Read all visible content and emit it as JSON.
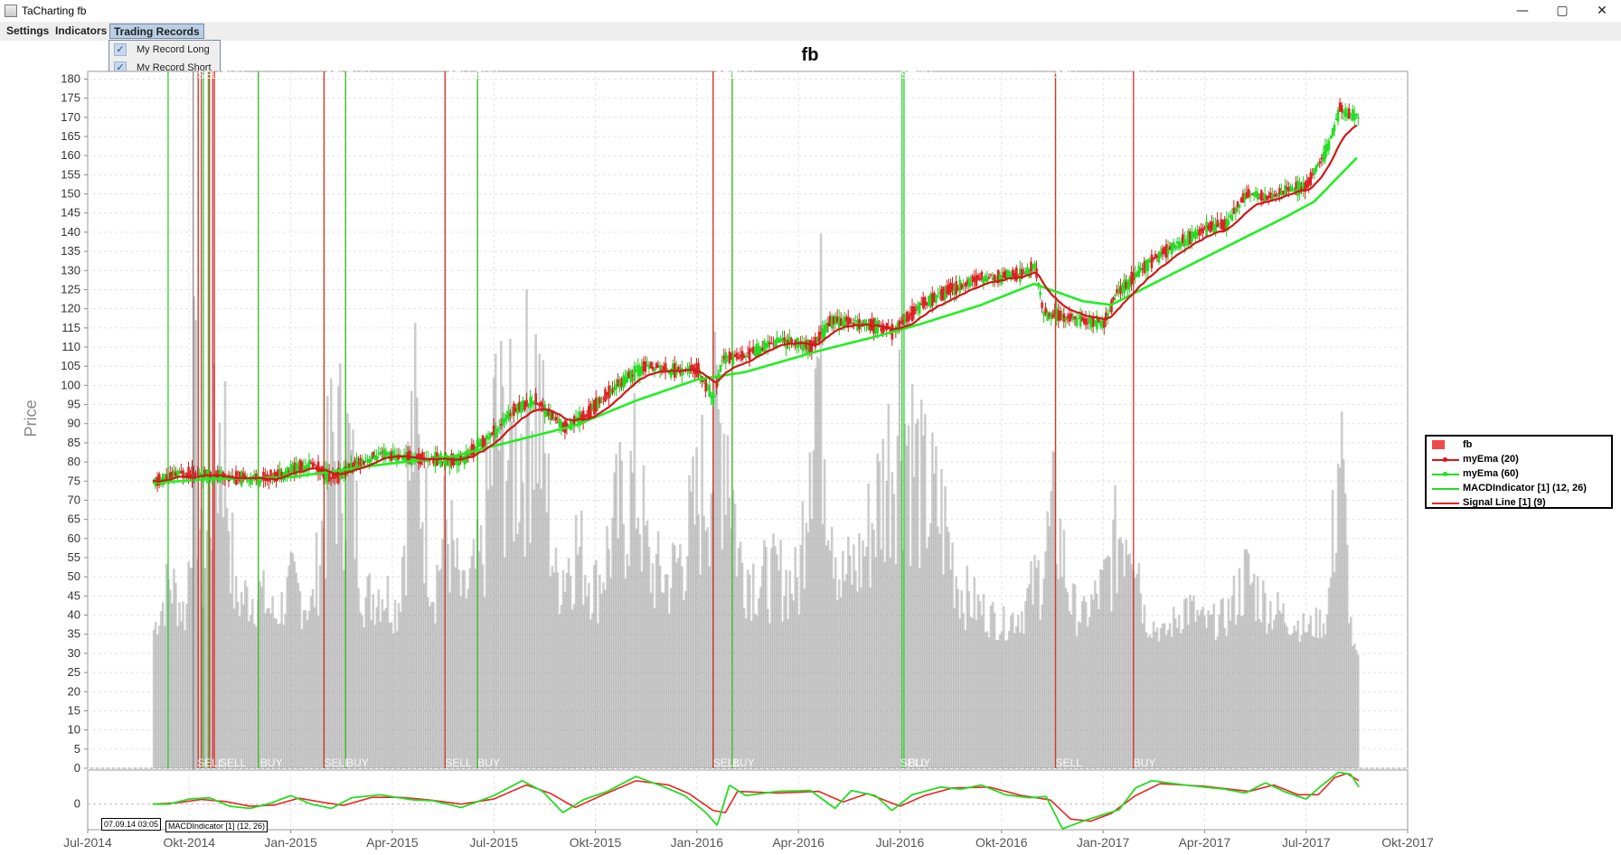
{
  "window": {
    "title": "TaCharting fb",
    "controls": [
      "—",
      "▢",
      "✕"
    ]
  },
  "menu": {
    "items": [
      "Settings",
      "Indicators",
      "Trading Records"
    ],
    "active_index": 2
  },
  "dropdown": {
    "items": [
      {
        "label": "My Record Long",
        "checked": true
      },
      {
        "label": "My Record Short",
        "checked": true
      }
    ]
  },
  "tooltip": {
    "text": "07.09.14 03:05",
    "overlap_text": "MACDIndicator [1] (12, 26)"
  },
  "legend": [
    {
      "label": "fb",
      "color": "#ee4b4b",
      "style": "box"
    },
    {
      "label": "myEma (20)",
      "color": "#e01010",
      "style": "line-dot"
    },
    {
      "label": "myEma (60)",
      "color": "#1ee01e",
      "style": "line-dot"
    },
    {
      "label": "MACDIndicator [1] (12, 26)",
      "color": "#22dd22",
      "style": "line"
    },
    {
      "label": "Signal Line [1] (9)",
      "color": "#ee2222",
      "style": "line"
    }
  ],
  "chart_data": {
    "type": "candlestick",
    "title": "fb",
    "ylabel": "Price",
    "ylim": [
      0,
      182
    ],
    "y_ticks": [
      0,
      5,
      10,
      15,
      20,
      25,
      30,
      35,
      40,
      45,
      50,
      55,
      60,
      65,
      70,
      75,
      80,
      85,
      90,
      95,
      100,
      105,
      110,
      115,
      120,
      125,
      130,
      135,
      140,
      145,
      150,
      155,
      160,
      165,
      170,
      175,
      180
    ],
    "xlim": [
      2014.5,
      2017.75
    ],
    "x_ticks": [
      {
        "label": "Jul-2014",
        "x": 2014.5
      },
      {
        "label": "Okt-2014",
        "x": 2014.75
      },
      {
        "label": "Jan-2015",
        "x": 2015.0
      },
      {
        "label": "Apr-2015",
        "x": 2015.25
      },
      {
        "label": "Jul-2015",
        "x": 2015.5
      },
      {
        "label": "Okt-2015",
        "x": 2015.75
      },
      {
        "label": "Jan-2016",
        "x": 2016.0
      },
      {
        "label": "Apr-2016",
        "x": 2016.25
      },
      {
        "label": "Jul-2016",
        "x": 2016.5
      },
      {
        "label": "Okt-2016",
        "x": 2016.75
      },
      {
        "label": "Jan-2017",
        "x": 2017.0
      },
      {
        "label": "Apr-2017",
        "x": 2017.25
      },
      {
        "label": "Jul-2017",
        "x": 2017.5
      },
      {
        "label": "Okt-2017",
        "x": 2017.75
      }
    ],
    "data_range": [
      2014.66,
      2017.63
    ],
    "grid": true,
    "legend_position": "right",
    "price_path": [
      [
        2014.66,
        74.5
      ],
      [
        2014.72,
        77
      ],
      [
        2014.8,
        76.5
      ],
      [
        2014.88,
        75.5
      ],
      [
        2014.95,
        76
      ],
      [
        2015.0,
        78
      ],
      [
        2015.05,
        79.5
      ],
      [
        2015.1,
        75.5
      ],
      [
        2015.15,
        79
      ],
      [
        2015.22,
        82
      ],
      [
        2015.3,
        81
      ],
      [
        2015.37,
        80.5
      ],
      [
        2015.42,
        80.5
      ],
      [
        2015.5,
        88
      ],
      [
        2015.55,
        94
      ],
      [
        2015.6,
        96
      ],
      [
        2015.67,
        89
      ],
      [
        2015.72,
        92
      ],
      [
        2015.8,
        100
      ],
      [
        2015.87,
        105
      ],
      [
        2015.93,
        104
      ],
      [
        2016.0,
        104
      ],
      [
        2016.04,
        96
      ],
      [
        2016.06,
        107
      ],
      [
        2016.12,
        108
      ],
      [
        2016.2,
        112
      ],
      [
        2016.28,
        110
      ],
      [
        2016.33,
        117
      ],
      [
        2016.42,
        116
      ],
      [
        2016.48,
        114
      ],
      [
        2016.55,
        121
      ],
      [
        2016.62,
        125
      ],
      [
        2016.7,
        128
      ],
      [
        2016.8,
        129
      ],
      [
        2016.83,
        131
      ],
      [
        2016.85,
        119
      ],
      [
        2016.9,
        118
      ],
      [
        2016.95,
        117
      ],
      [
        2017.0,
        116
      ],
      [
        2017.03,
        124
      ],
      [
        2017.1,
        131
      ],
      [
        2017.15,
        135
      ],
      [
        2017.25,
        141
      ],
      [
        2017.3,
        142
      ],
      [
        2017.35,
        150
      ],
      [
        2017.4,
        149
      ],
      [
        2017.45,
        151
      ],
      [
        2017.5,
        152
      ],
      [
        2017.55,
        162
      ],
      [
        2017.58,
        172
      ],
      [
        2017.6,
        171
      ],
      [
        2017.63,
        170
      ]
    ],
    "ema60_path": [
      [
        2014.66,
        74.5
      ],
      [
        2014.8,
        75.5
      ],
      [
        2015.0,
        76
      ],
      [
        2015.2,
        79
      ],
      [
        2015.4,
        81.5
      ],
      [
        2015.55,
        85.5
      ],
      [
        2015.7,
        89.5
      ],
      [
        2015.85,
        96
      ],
      [
        2016.0,
        101.5
      ],
      [
        2016.12,
        103.5
      ],
      [
        2016.3,
        109
      ],
      [
        2016.45,
        113
      ],
      [
        2016.55,
        116
      ],
      [
        2016.7,
        121
      ],
      [
        2016.83,
        126.5
      ],
      [
        2016.95,
        122
      ],
      [
        2017.02,
        121
      ],
      [
        2017.15,
        128
      ],
      [
        2017.3,
        136
      ],
      [
        2017.45,
        144
      ],
      [
        2017.52,
        148
      ],
      [
        2017.63,
        160
      ]
    ],
    "volume_bars": [
      {
        "x": 2014.66,
        "v": 40
      },
      {
        "x": 2014.7,
        "v": 60
      },
      {
        "x": 2014.74,
        "v": 45
      },
      {
        "x": 2014.76,
        "v": 132
      },
      {
        "x": 2014.78,
        "v": 58
      },
      {
        "x": 2014.8,
        "v": 97
      },
      {
        "x": 2014.83,
        "v": 130
      },
      {
        "x": 2014.86,
        "v": 52
      },
      {
        "x": 2014.92,
        "v": 55
      },
      {
        "x": 2014.96,
        "v": 45
      },
      {
        "x": 2015.0,
        "v": 58
      },
      {
        "x": 2015.05,
        "v": 49
      },
      {
        "x": 2015.1,
        "v": 114
      },
      {
        "x": 2015.14,
        "v": 110
      },
      {
        "x": 2015.18,
        "v": 52
      },
      {
        "x": 2015.22,
        "v": 58
      },
      {
        "x": 2015.26,
        "v": 48
      },
      {
        "x": 2015.3,
        "v": 126
      },
      {
        "x": 2015.35,
        "v": 56
      },
      {
        "x": 2015.38,
        "v": 84
      },
      {
        "x": 2015.42,
        "v": 52
      },
      {
        "x": 2015.47,
        "v": 70
      },
      {
        "x": 2015.5,
        "v": 124
      },
      {
        "x": 2015.55,
        "v": 109
      },
      {
        "x": 2015.6,
        "v": 143
      },
      {
        "x": 2015.65,
        "v": 60
      },
      {
        "x": 2015.7,
        "v": 75
      },
      {
        "x": 2015.75,
        "v": 57
      },
      {
        "x": 2015.8,
        "v": 85
      },
      {
        "x": 2015.85,
        "v": 102
      },
      {
        "x": 2015.88,
        "v": 65
      },
      {
        "x": 2015.93,
        "v": 60
      },
      {
        "x": 2015.98,
        "v": 80
      },
      {
        "x": 2016.03,
        "v": 110
      },
      {
        "x": 2016.07,
        "v": 129
      },
      {
        "x": 2016.1,
        "v": 70
      },
      {
        "x": 2016.15,
        "v": 60
      },
      {
        "x": 2016.2,
        "v": 62
      },
      {
        "x": 2016.25,
        "v": 58
      },
      {
        "x": 2016.28,
        "v": 150
      },
      {
        "x": 2016.3,
        "v": 149
      },
      {
        "x": 2016.35,
        "v": 60
      },
      {
        "x": 2016.4,
        "v": 68
      },
      {
        "x": 2016.46,
        "v": 103
      },
      {
        "x": 2016.5,
        "v": 133
      },
      {
        "x": 2016.55,
        "v": 98
      },
      {
        "x": 2016.6,
        "v": 87
      },
      {
        "x": 2016.65,
        "v": 55
      },
      {
        "x": 2016.7,
        "v": 48
      },
      {
        "x": 2016.75,
        "v": 42
      },
      {
        "x": 2016.8,
        "v": 48
      },
      {
        "x": 2016.84,
        "v": 62
      },
      {
        "x": 2016.88,
        "v": 88
      },
      {
        "x": 2016.92,
        "v": 50
      },
      {
        "x": 2016.95,
        "v": 45
      },
      {
        "x": 2017.0,
        "v": 58
      },
      {
        "x": 2017.04,
        "v": 82
      },
      {
        "x": 2017.07,
        "v": 93
      },
      {
        "x": 2017.1,
        "v": 45
      },
      {
        "x": 2017.15,
        "v": 38
      },
      {
        "x": 2017.2,
        "v": 50
      },
      {
        "x": 2017.25,
        "v": 42
      },
      {
        "x": 2017.3,
        "v": 45
      },
      {
        "x": 2017.35,
        "v": 62
      },
      {
        "x": 2017.4,
        "v": 50
      },
      {
        "x": 2017.45,
        "v": 45
      },
      {
        "x": 2017.5,
        "v": 40
      },
      {
        "x": 2017.55,
        "v": 45
      },
      {
        "x": 2017.58,
        "v": 118
      },
      {
        "x": 2017.61,
        "v": 35
      },
      {
        "x": 2017.63,
        "v": 28
      }
    ],
    "volume_fill_level": 30,
    "trade_regions": [
      {
        "type": "long",
        "x0": 2014.698,
        "x1": 2014.772
      },
      {
        "type": "short",
        "x0": 2014.772,
        "x1": 2014.78
      },
      {
        "type": "long",
        "x0": 2014.785,
        "x1": 2014.797
      },
      {
        "type": "short",
        "x0": 2014.8,
        "x1": 2014.808
      },
      {
        "type": "short",
        "x0": 2014.812,
        "x1": 2014.92
      },
      {
        "type": "long",
        "x0": 2014.92,
        "x1": 2015.082
      },
      {
        "type": "short",
        "x0": 2015.082,
        "x1": 2015.135
      },
      {
        "type": "long",
        "x0": 2015.135,
        "x1": 2015.38
      },
      {
        "type": "short",
        "x0": 2015.38,
        "x1": 2015.46
      },
      {
        "type": "long",
        "x0": 2015.46,
        "x1": 2016.04
      },
      {
        "type": "short",
        "x0": 2016.04,
        "x1": 2016.087
      },
      {
        "type": "long",
        "x0": 2016.087,
        "x1": 2016.505
      },
      {
        "type": "long",
        "x0": 2016.51,
        "x1": 2016.883
      },
      {
        "type": "short",
        "x0": 2016.883,
        "x1": 2017.075
      }
    ],
    "region_labels": [
      {
        "text": "SELL",
        "x": 2014.77
      },
      {
        "text": "BUY",
        "x": 2014.83
      },
      {
        "text": "SELL",
        "x": 2015.085
      },
      {
        "text": "BUY",
        "x": 2015.14
      },
      {
        "text": "SELL",
        "x": 2015.385
      },
      {
        "text": "BUY",
        "x": 2015.455
      },
      {
        "text": "SELL",
        "x": 2016.045
      },
      {
        "text": "BUY",
        "x": 2016.085
      },
      {
        "text": "SELL",
        "x": 2016.5
      },
      {
        "text": "BUY",
        "x": 2016.525
      },
      {
        "text": "SELL",
        "x": 2016.88
      },
      {
        "text": "BUY",
        "x": 2017.075
      }
    ],
    "bottom_labels": [
      {
        "text": "SELL",
        "x": 2014.77
      },
      {
        "text": "SELL",
        "x": 2014.825
      },
      {
        "text": "BUY",
        "x": 2014.925
      },
      {
        "text": "SELL",
        "x": 2015.082
      },
      {
        "text": "BUY",
        "x": 2015.137
      },
      {
        "text": "SELL",
        "x": 2015.38
      },
      {
        "text": "BUY",
        "x": 2015.46
      },
      {
        "text": "SELL",
        "x": 2016.04
      },
      {
        "text": "BUY",
        "x": 2016.087
      },
      {
        "text": "SELL",
        "x": 2016.5
      },
      {
        "text": "BUY",
        "x": 2016.52
      },
      {
        "text": "SELL",
        "x": 2016.883
      },
      {
        "text": "BUY",
        "x": 2017.075
      }
    ],
    "macd": {
      "y_tick_label": "0",
      "ylim": [
        -6,
        8
      ],
      "macd_path": [
        [
          2014.66,
          0
        ],
        [
          2014.7,
          0
        ],
        [
          2014.75,
          1.2
        ],
        [
          2014.8,
          1.5
        ],
        [
          2014.85,
          -0.5
        ],
        [
          2014.9,
          -1
        ],
        [
          2014.95,
          0.2
        ],
        [
          2015.0,
          2
        ],
        [
          2015.05,
          0
        ],
        [
          2015.1,
          -1
        ],
        [
          2015.15,
          1.5
        ],
        [
          2015.22,
          2.2
        ],
        [
          2015.3,
          1
        ],
        [
          2015.35,
          0.8
        ],
        [
          2015.42,
          -0.8
        ],
        [
          2015.5,
          2
        ],
        [
          2015.57,
          5.5
        ],
        [
          2015.62,
          3
        ],
        [
          2015.67,
          -2
        ],
        [
          2015.72,
          1
        ],
        [
          2015.78,
          3
        ],
        [
          2015.85,
          6.5
        ],
        [
          2015.92,
          4
        ],
        [
          2015.97,
          2
        ],
        [
          2016.02,
          -1.8
        ],
        [
          2016.05,
          -5
        ],
        [
          2016.08,
          4.5
        ],
        [
          2016.12,
          2
        ],
        [
          2016.2,
          3
        ],
        [
          2016.28,
          3.2
        ],
        [
          2016.34,
          -1
        ],
        [
          2016.38,
          3.2
        ],
        [
          2016.44,
          2
        ],
        [
          2016.48,
          -1.5
        ],
        [
          2016.53,
          2.2
        ],
        [
          2016.6,
          4
        ],
        [
          2016.65,
          3.5
        ],
        [
          2016.7,
          4.5
        ],
        [
          2016.76,
          2.2
        ],
        [
          2016.82,
          1.5
        ],
        [
          2016.86,
          1.8
        ],
        [
          2016.9,
          -5.8
        ],
        [
          2016.95,
          -4
        ],
        [
          2017.0,
          -2.5
        ],
        [
          2017.04,
          -1.3
        ],
        [
          2017.08,
          3.8
        ],
        [
          2017.12,
          5.5
        ],
        [
          2017.2,
          4.5
        ],
        [
          2017.3,
          3.5
        ],
        [
          2017.35,
          2.6
        ],
        [
          2017.4,
          5
        ],
        [
          2017.45,
          2.8
        ],
        [
          2017.5,
          1.2
        ],
        [
          2017.54,
          4.5
        ],
        [
          2017.58,
          7.5
        ],
        [
          2017.61,
          7
        ],
        [
          2017.63,
          4
        ]
      ],
      "signal_path": [
        [
          2014.66,
          0
        ],
        [
          2014.72,
          0.3
        ],
        [
          2014.78,
          1.1
        ],
        [
          2014.84,
          0.6
        ],
        [
          2014.9,
          -0.5
        ],
        [
          2014.96,
          -0.2
        ],
        [
          2015.02,
          1.4
        ],
        [
          2015.08,
          0.4
        ],
        [
          2015.13,
          -0.3
        ],
        [
          2015.2,
          1.6
        ],
        [
          2015.27,
          1.6
        ],
        [
          2015.34,
          1
        ],
        [
          2015.42,
          0
        ],
        [
          2015.5,
          1.2
        ],
        [
          2015.58,
          4.5
        ],
        [
          2015.64,
          2.5
        ],
        [
          2015.7,
          -0.8
        ],
        [
          2015.76,
          1.8
        ],
        [
          2015.85,
          5.5
        ],
        [
          2015.93,
          4.5
        ],
        [
          2015.98,
          2.5
        ],
        [
          2016.04,
          -1.5
        ],
        [
          2016.07,
          -2
        ],
        [
          2016.1,
          3
        ],
        [
          2016.2,
          2.6
        ],
        [
          2016.3,
          3
        ],
        [
          2016.36,
          0.5
        ],
        [
          2016.42,
          2.5
        ],
        [
          2016.5,
          -0.5
        ],
        [
          2016.56,
          2
        ],
        [
          2016.63,
          3.8
        ],
        [
          2016.72,
          4
        ],
        [
          2016.8,
          2
        ],
        [
          2016.87,
          1
        ],
        [
          2016.92,
          -3.5
        ],
        [
          2016.97,
          -4
        ],
        [
          2017.02,
          -2.2
        ],
        [
          2017.08,
          2
        ],
        [
          2017.14,
          4.8
        ],
        [
          2017.25,
          4.2
        ],
        [
          2017.36,
          3
        ],
        [
          2017.42,
          4.5
        ],
        [
          2017.48,
          2.2
        ],
        [
          2017.53,
          2.2
        ],
        [
          2017.57,
          6.2
        ],
        [
          2017.6,
          7.2
        ],
        [
          2017.63,
          5.5
        ]
      ]
    },
    "crosshair_x": 2014.76
  }
}
